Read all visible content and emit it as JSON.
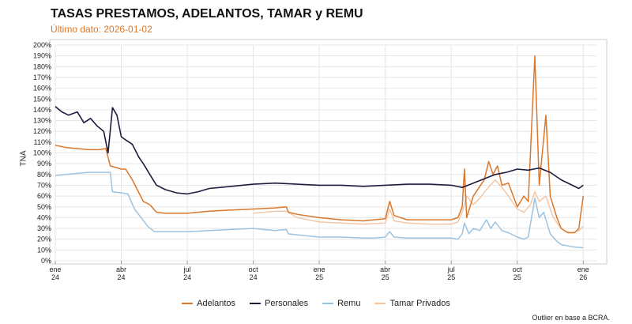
{
  "chart_data": {
    "type": "line",
    "title": "TASAS PRESTAMOS, ADELANTOS, TAMAR y REMU",
    "subtitle": "Último dato: 2026-01-02",
    "ylabel": "TNA",
    "caption": "Outlier en base a BCRA.",
    "ylim": [
      0,
      200
    ],
    "yticks": [
      "0%",
      "10%",
      "20%",
      "30%",
      "40%",
      "50%",
      "60%",
      "70%",
      "80%",
      "90%",
      "100%",
      "110%",
      "120%",
      "130%",
      "140%",
      "150%",
      "160%",
      "170%",
      "180%",
      "190%",
      "200%"
    ],
    "xticks": [
      {
        "m": 0,
        "l1": "ene",
        "l2": "24"
      },
      {
        "m": 3,
        "l1": "abr",
        "l2": "24"
      },
      {
        "m": 6,
        "l1": "jul",
        "l2": "24"
      },
      {
        "m": 9,
        "l1": "oct",
        "l2": "24"
      },
      {
        "m": 12,
        "l1": "ene",
        "l2": "25"
      },
      {
        "m": 15,
        "l1": "abr",
        "l2": "25"
      },
      {
        "m": 18,
        "l1": "jul",
        "l2": "25"
      },
      {
        "m": 21,
        "l1": "oct",
        "l2": "25"
      },
      {
        "m": 24,
        "l1": "ene",
        "l2": "26"
      }
    ],
    "grid": true,
    "legend_position": "bottom",
    "series": [
      {
        "name": "Adelantos",
        "color": "#d9772b",
        "points": [
          [
            0,
            107
          ],
          [
            0.5,
            105
          ],
          [
            1,
            104
          ],
          [
            1.5,
            103
          ],
          [
            2,
            103
          ],
          [
            2.3,
            104
          ],
          [
            2.5,
            88
          ],
          [
            3,
            85
          ],
          [
            3.2,
            85
          ],
          [
            3.5,
            75
          ],
          [
            4,
            55
          ],
          [
            4.3,
            52
          ],
          [
            4.6,
            45
          ],
          [
            5,
            44
          ],
          [
            6,
            44
          ],
          [
            7,
            46
          ],
          [
            8,
            47
          ],
          [
            9,
            48
          ],
          [
            10,
            49
          ],
          [
            10.5,
            50
          ],
          [
            10.6,
            45
          ],
          [
            11,
            43
          ],
          [
            12,
            40
          ],
          [
            13,
            38
          ],
          [
            14,
            37
          ],
          [
            14.5,
            38
          ],
          [
            15,
            39
          ],
          [
            15.2,
            55
          ],
          [
            15.4,
            42
          ],
          [
            16,
            38
          ],
          [
            17,
            38
          ],
          [
            18,
            38
          ],
          [
            18.3,
            40
          ],
          [
            18.5,
            50
          ],
          [
            18.6,
            85
          ],
          [
            18.7,
            40
          ],
          [
            19,
            60
          ],
          [
            19.5,
            75
          ],
          [
            19.7,
            92
          ],
          [
            19.9,
            80
          ],
          [
            20.1,
            88
          ],
          [
            20.3,
            70
          ],
          [
            20.6,
            72
          ],
          [
            21,
            50
          ],
          [
            21.3,
            60
          ],
          [
            21.5,
            55
          ],
          [
            21.8,
            190
          ],
          [
            22,
            70
          ],
          [
            22.3,
            135
          ],
          [
            22.5,
            60
          ],
          [
            22.8,
            40
          ],
          [
            23,
            30
          ],
          [
            23.3,
            26
          ],
          [
            23.6,
            26
          ],
          [
            23.8,
            30
          ],
          [
            24,
            60
          ]
        ]
      },
      {
        "name": "Personales",
        "color": "#1b1d3d",
        "points": [
          [
            0,
            143
          ],
          [
            0.3,
            138
          ],
          [
            0.6,
            135
          ],
          [
            1,
            138
          ],
          [
            1.3,
            128
          ],
          [
            1.6,
            132
          ],
          [
            1.9,
            125
          ],
          [
            2.2,
            120
          ],
          [
            2.4,
            100
          ],
          [
            2.6,
            142
          ],
          [
            2.8,
            135
          ],
          [
            3,
            115
          ],
          [
            3.2,
            112
          ],
          [
            3.5,
            108
          ],
          [
            3.8,
            96
          ],
          [
            4,
            90
          ],
          [
            4.3,
            80
          ],
          [
            4.6,
            70
          ],
          [
            5,
            66
          ],
          [
            5.5,
            63
          ],
          [
            6,
            62
          ],
          [
            6.5,
            64
          ],
          [
            7,
            67
          ],
          [
            7.5,
            68
          ],
          [
            8,
            69
          ],
          [
            8.5,
            70
          ],
          [
            9,
            71
          ],
          [
            10,
            72
          ],
          [
            11,
            71
          ],
          [
            12,
            70
          ],
          [
            13,
            70
          ],
          [
            14,
            69
          ],
          [
            15,
            70
          ],
          [
            16,
            71
          ],
          [
            17,
            71
          ],
          [
            18,
            70
          ],
          [
            18.5,
            68
          ],
          [
            19,
            72
          ],
          [
            19.5,
            76
          ],
          [
            20,
            80
          ],
          [
            20.5,
            82
          ],
          [
            21,
            85
          ],
          [
            21.5,
            84
          ],
          [
            22,
            86
          ],
          [
            22.5,
            82
          ],
          [
            23,
            75
          ],
          [
            23.5,
            70
          ],
          [
            23.8,
            67
          ],
          [
            24,
            70
          ]
        ]
      },
      {
        "name": "Remu",
        "color": "#9cc3e0",
        "points": [
          [
            0,
            79
          ],
          [
            0.5,
            80
          ],
          [
            1,
            81
          ],
          [
            1.5,
            82
          ],
          [
            2,
            82
          ],
          [
            2.5,
            82
          ],
          [
            2.6,
            64
          ],
          [
            3,
            63
          ],
          [
            3.3,
            62
          ],
          [
            3.6,
            48
          ],
          [
            3.9,
            40
          ],
          [
            4.2,
            32
          ],
          [
            4.5,
            27
          ],
          [
            5,
            27
          ],
          [
            6,
            27
          ],
          [
            7,
            28
          ],
          [
            8,
            29
          ],
          [
            9,
            30
          ],
          [
            10,
            28
          ],
          [
            10.5,
            29
          ],
          [
            10.6,
            25
          ],
          [
            11,
            24
          ],
          [
            12,
            22
          ],
          [
            13,
            22
          ],
          [
            14,
            21
          ],
          [
            14.5,
            21
          ],
          [
            15,
            22
          ],
          [
            15.2,
            27
          ],
          [
            15.4,
            22
          ],
          [
            16,
            21
          ],
          [
            17,
            21
          ],
          [
            18,
            21
          ],
          [
            18.3,
            20
          ],
          [
            18.5,
            25
          ],
          [
            18.6,
            35
          ],
          [
            18.8,
            25
          ],
          [
            19,
            30
          ],
          [
            19.3,
            28
          ],
          [
            19.6,
            38
          ],
          [
            19.8,
            30
          ],
          [
            20,
            36
          ],
          [
            20.3,
            28
          ],
          [
            20.6,
            26
          ],
          [
            21,
            22
          ],
          [
            21.3,
            20
          ],
          [
            21.5,
            22
          ],
          [
            21.8,
            58
          ],
          [
            22,
            40
          ],
          [
            22.2,
            45
          ],
          [
            22.5,
            25
          ],
          [
            22.8,
            18
          ],
          [
            23,
            15
          ],
          [
            23.5,
            13
          ],
          [
            24,
            12
          ]
        ]
      },
      {
        "name": "Tamar Privados",
        "color": "#f3c7a6",
        "points": [
          [
            9,
            44
          ],
          [
            9.5,
            45
          ],
          [
            10,
            46
          ],
          [
            10.5,
            46
          ],
          [
            11,
            40
          ],
          [
            12,
            36
          ],
          [
            13,
            35
          ],
          [
            14,
            34
          ],
          [
            15,
            35
          ],
          [
            15.2,
            48
          ],
          [
            15.4,
            37
          ],
          [
            16,
            35
          ],
          [
            17,
            34
          ],
          [
            18,
            34
          ],
          [
            18.3,
            36
          ],
          [
            18.5,
            45
          ],
          [
            18.7,
            60
          ],
          [
            19,
            52
          ],
          [
            19.3,
            58
          ],
          [
            19.6,
            66
          ],
          [
            20,
            75
          ],
          [
            20.3,
            68
          ],
          [
            20.6,
            60
          ],
          [
            21,
            48
          ],
          [
            21.3,
            45
          ],
          [
            21.6,
            52
          ],
          [
            21.8,
            64
          ],
          [
            22,
            55
          ],
          [
            22.3,
            60
          ],
          [
            22.6,
            42
          ],
          [
            22.9,
            32
          ],
          [
            23.2,
            27
          ],
          [
            23.5,
            26
          ],
          [
            23.8,
            28
          ],
          [
            24,
            32
          ]
        ]
      }
    ]
  }
}
